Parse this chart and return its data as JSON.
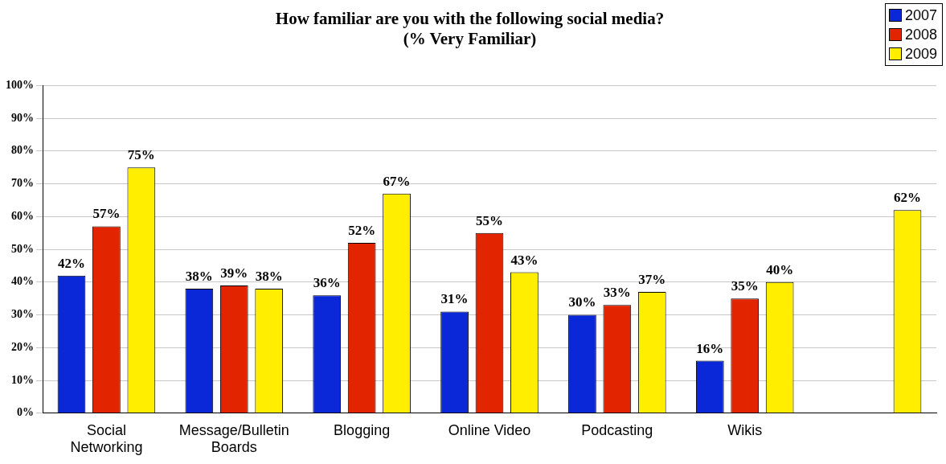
{
  "chart_data": {
    "type": "bar",
    "title": "How familiar are you with the following social media?",
    "subtitle": "(% Very Familiar)",
    "categories": [
      "Social Networking",
      "Message/Bulletin Boards",
      "Blogging",
      "Online Video",
      "Podcasting",
      "Wikis",
      null
    ],
    "series": [
      {
        "name": "2007",
        "color": "#0a28d8",
        "values": [
          42,
          38,
          36,
          31,
          30,
          16,
          null
        ],
        "value_labels": [
          "42%",
          "38%",
          "36%",
          "31%",
          "30%",
          "16%",
          null
        ]
      },
      {
        "name": "2008",
        "color": "#e22400",
        "values": [
          57,
          39,
          52,
          55,
          33,
          35,
          null
        ],
        "value_labels": [
          "57%",
          "39%",
          "52%",
          "55%",
          "33%",
          "35%",
          null
        ]
      },
      {
        "name": "2009",
        "color": "#ffee00",
        "values": [
          75,
          38,
          67,
          43,
          37,
          40,
          62
        ],
        "value_labels": [
          "75%",
          "38%",
          "67%",
          "43%",
          "37%",
          "40%",
          "62%"
        ]
      }
    ],
    "ylim": [
      0,
      100
    ],
    "yticks": [
      {
        "value": 0,
        "label": "0%"
      },
      {
        "value": 10,
        "label": "10%"
      },
      {
        "value": 20,
        "label": "20%"
      },
      {
        "value": 30,
        "label": "30%"
      },
      {
        "value": 40,
        "label": "40%"
      },
      {
        "value": 50,
        "label": "50%"
      },
      {
        "value": 60,
        "label": "60%"
      },
      {
        "value": 70,
        "label": "70%"
      },
      {
        "value": 80,
        "label": "80%"
      },
      {
        "value": 90,
        "label": "90%"
      },
      {
        "value": 100,
        "label": "100%"
      }
    ],
    "grid": "y",
    "legend": "top right"
  }
}
